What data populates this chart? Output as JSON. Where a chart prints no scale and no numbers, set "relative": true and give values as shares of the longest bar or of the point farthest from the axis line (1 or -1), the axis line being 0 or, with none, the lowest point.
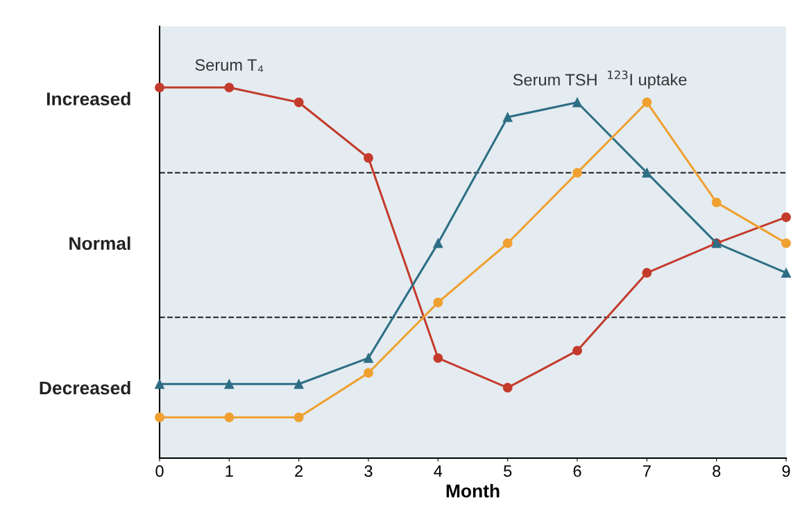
{
  "chart_data": {
    "type": "line",
    "xlabel": "Month",
    "relative": true,
    "x": [
      0,
      1,
      2,
      3,
      4,
      5,
      6,
      7,
      8,
      9
    ],
    "xlim": [
      0,
      9
    ],
    "xticks": [
      0,
      1,
      2,
      3,
      4,
      5,
      6,
      7,
      8,
      9
    ],
    "series": [
      {
        "name": "Serum T₄",
        "color": "#c43b2c",
        "marker": "circle",
        "values": [
          1.0,
          1.0,
          0.96,
          0.81,
          0.27,
          0.19,
          0.29,
          0.5,
          0.58,
          0.65
        ]
      },
      {
        "name": "Serum TSH",
        "color": "#2e6e85",
        "marker": "triangle",
        "values": [
          0.2,
          0.2,
          0.2,
          0.27,
          0.58,
          0.92,
          0.96,
          0.77,
          0.58,
          0.5
        ]
      },
      {
        "name": "$^{123}$I uptake",
        "color": "#f0a030",
        "marker": "circle",
        "values": [
          0.11,
          0.11,
          0.11,
          0.23,
          0.42,
          0.58,
          0.77,
          0.96,
          0.69,
          0.58
        ]
      }
    ],
    "ref_lines": [
      {
        "axis": "y",
        "value": 0.77,
        "color": "#333333",
        "line_style": "dashed"
      },
      {
        "axis": "y",
        "value": 0.38,
        "color": "#333333",
        "line_style": "dashed"
      }
    ],
    "annotations": [
      "Increased",
      "Normal",
      "Decreased"
    ],
    "grid": false,
    "legend": false
  }
}
